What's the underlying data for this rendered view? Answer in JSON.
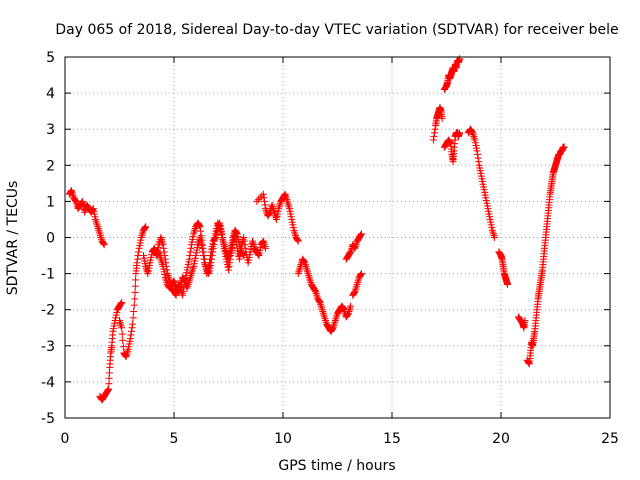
{
  "chart_data": {
    "type": "scatter",
    "title": "Day 065 of 2018, Sidereal Day-to-day VTEC variation (SDTVAR) for receiver bele",
    "xlabel": "GPS time / hours",
    "ylabel": "SDTVAR / TECUs",
    "xlim": [
      0,
      25
    ],
    "ylim": [
      -5,
      5
    ],
    "xticks": [
      "0",
      "5",
      "10",
      "15",
      "20",
      "25"
    ],
    "yticks": [
      "5",
      "4",
      "3",
      "2",
      "1",
      "0",
      "-1",
      "-2",
      "-3",
      "-4",
      "-5"
    ],
    "grid": true,
    "marker": "+",
    "color": "#ff0000",
    "series": [
      {
        "name": "SDTVAR",
        "segments": [
          {
            "x": [
              0.2,
              0.3,
              0.4,
              0.5,
              0.6,
              0.7,
              0.8,
              0.9,
              1.0,
              1.1,
              1.2,
              1.3,
              1.4,
              1.5,
              1.6,
              1.7,
              1.8
            ],
            "y": [
              1.2,
              1.3,
              1.1,
              1.0,
              0.8,
              0.9,
              1.0,
              0.7,
              0.9,
              0.8,
              0.7,
              0.8,
              0.5,
              0.3,
              0.1,
              -0.1,
              -0.2
            ]
          },
          {
            "x": [
              1.6,
              1.7,
              1.8,
              1.9,
              2.0,
              2.05,
              2.1,
              2.15,
              2.2,
              2.3,
              2.4,
              2.5,
              2.6
            ],
            "y": [
              -4.4,
              -4.5,
              -4.4,
              -4.3,
              -4.2,
              -3.6,
              -3.2,
              -3.0,
              -2.6,
              -2.3,
              -2.0,
              -1.9,
              -1.8
            ]
          },
          {
            "x": [
              2.5,
              2.6,
              2.7,
              2.8,
              2.9,
              3.0,
              3.1,
              3.2,
              3.25,
              3.3,
              3.4,
              3.5,
              3.6,
              3.7
            ],
            "y": [
              -2.3,
              -2.5,
              -3.2,
              -3.3,
              -3.1,
              -2.8,
              -2.4,
              -1.7,
              -1.0,
              -0.7,
              -0.3,
              0.0,
              0.2,
              0.3
            ]
          },
          {
            "x": [
              3.6,
              3.7,
              3.8,
              3.9,
              4.0,
              4.1,
              4.2,
              4.3,
              4.4,
              4.5,
              4.6,
              4.7,
              4.8,
              4.9,
              5.0,
              5.1,
              5.2,
              5.3,
              5.4,
              5.5,
              5.6,
              5.7,
              5.8,
              5.9,
              6.0,
              6.1,
              6.2,
              6.3,
              6.4,
              6.5,
              6.6,
              6.7,
              6.8,
              6.9,
              7.0,
              7.1,
              7.2,
              7.3,
              7.4,
              7.5,
              7.6,
              7.7,
              7.8,
              7.9,
              8.0,
              8.1,
              8.2,
              8.3,
              8.4,
              8.5,
              8.6,
              8.7,
              8.8,
              8.9,
              9.0,
              9.1,
              9.2
            ],
            "y": [
              -0.5,
              -0.8,
              -1.0,
              -0.7,
              -0.4,
              -0.3,
              -0.5,
              -0.2,
              0.0,
              -0.2,
              -0.6,
              -1.0,
              -1.2,
              -1.4,
              -1.5,
              -1.6,
              -1.3,
              -1.4,
              -1.6,
              -1.2,
              -0.9,
              -0.6,
              -0.2,
              0.1,
              0.3,
              0.4,
              0.3,
              -0.2,
              -0.6,
              -1.0,
              -0.8,
              -0.4,
              -0.1,
              0.0,
              0.2,
              0.4,
              0.1,
              -0.3,
              -0.6,
              -0.9,
              -0.5,
              -0.2,
              0.1,
              -0.3,
              -0.6,
              -0.2,
              0.0,
              -0.4,
              -0.7,
              -0.4,
              -0.1,
              -0.3,
              -0.4,
              -0.5,
              -0.2,
              -0.1,
              -0.3
            ]
          },
          {
            "x": [
              4.2,
              4.3,
              4.4,
              4.5,
              4.6,
              4.7,
              4.8,
              4.9,
              5.0,
              5.1,
              5.2,
              5.3,
              5.4,
              5.5,
              5.6,
              5.7,
              5.8,
              5.9,
              6.0,
              6.1,
              6.2,
              6.3,
              6.4,
              6.5,
              6.6,
              6.7,
              6.8,
              6.9,
              7.0,
              7.1,
              7.2,
              7.3,
              7.4,
              7.5,
              7.6,
              7.7,
              7.8,
              7.9,
              8.0,
              8.1,
              8.2
            ],
            "y": [
              -0.5,
              -0.4,
              -0.6,
              -0.8,
              -1.1,
              -1.3,
              -1.4,
              -1.3,
              -1.2,
              -1.4,
              -1.5,
              -1.3,
              -1.1,
              -1.2,
              -1.4,
              -1.2,
              -1.0,
              -0.8,
              -0.5,
              -0.2,
              0.0,
              -0.3,
              -0.7,
              -0.9,
              -1.0,
              -0.7,
              -0.3,
              0.1,
              0.4,
              0.3,
              0.0,
              -0.2,
              -0.4,
              -0.6,
              -0.3,
              0.0,
              0.2,
              0.1,
              -0.2,
              -0.4,
              -0.5
            ]
          },
          {
            "x": [
              8.8,
              9.1,
              9.2,
              9.3,
              9.4,
              9.5,
              9.6,
              9.7,
              9.8,
              9.9,
              10.0,
              10.1,
              10.2,
              10.3,
              10.4,
              10.5,
              10.6,
              10.7
            ],
            "y": [
              1.0,
              1.2,
              0.8,
              0.6,
              0.7,
              0.9,
              0.7,
              0.5,
              0.8,
              1.0,
              1.1,
              1.2,
              1.0,
              0.8,
              0.5,
              0.2,
              0.0,
              -0.1
            ]
          },
          {
            "x": [
              10.7,
              10.8,
              10.9,
              11.0,
              11.1,
              11.2,
              11.3,
              11.4,
              11.5,
              11.6,
              11.7,
              11.8,
              11.9,
              12.0,
              12.1,
              12.2,
              12.3,
              12.4,
              12.5,
              12.6,
              12.7,
              12.8,
              12.9,
              13.0,
              13.1
            ],
            "y": [
              -1.0,
              -0.8,
              -0.6,
              -0.7,
              -0.9,
              -1.1,
              -1.3,
              -1.4,
              -1.5,
              -1.7,
              -1.8,
              -2.0,
              -2.2,
              -2.4,
              -2.5,
              -2.6,
              -2.5,
              -2.3,
              -2.1,
              -2.0,
              -1.9,
              -2.0,
              -2.2,
              -2.1,
              -1.9
            ]
          },
          {
            "x": [
              12.9,
              13.0,
              13.1,
              13.2,
              13.3,
              13.4,
              13.5,
              13.6
            ],
            "y": [
              -0.6,
              -0.5,
              -0.4,
              -0.2,
              -0.3,
              -0.1,
              0.0,
              0.1
            ]
          },
          {
            "x": [
              13.2,
              13.3,
              13.4,
              13.5,
              13.6
            ],
            "y": [
              -1.6,
              -1.5,
              -1.3,
              -1.1,
              -1.0
            ]
          },
          {
            "x": [
              16.9,
              17.0,
              17.05,
              17.1,
              17.15,
              17.2,
              17.25,
              17.3
            ],
            "y": [
              2.7,
              3.1,
              3.3,
              3.4,
              3.5,
              3.6,
              3.5,
              3.3
            ]
          },
          {
            "x": [
              17.4,
              17.5,
              17.55,
              17.6,
              17.65,
              17.7,
              17.75,
              17.8,
              17.85,
              17.9,
              17.95,
              18.0,
              18.05,
              18.1
            ],
            "y": [
              4.1,
              4.2,
              4.3,
              4.5,
              4.4,
              4.5,
              4.6,
              4.7,
              4.6,
              4.8,
              4.7,
              4.9,
              4.85,
              4.95
            ]
          },
          {
            "x": [
              17.4,
              17.5,
              17.6,
              17.7,
              17.75,
              17.8,
              17.85,
              17.9,
              17.95,
              18.0,
              18.05,
              18.1
            ],
            "y": [
              2.5,
              2.6,
              2.7,
              2.6,
              2.3,
              2.1,
              2.4,
              2.8,
              2.9,
              2.9,
              2.8,
              2.9
            ]
          },
          {
            "x": [
              18.5,
              18.6,
              18.7,
              18.8,
              18.9,
              19.0,
              19.1,
              19.2,
              19.3,
              19.4,
              19.5,
              19.6,
              19.7
            ],
            "y": [
              2.9,
              3.0,
              2.9,
              2.7,
              2.4,
              2.0,
              1.7,
              1.4,
              1.1,
              0.8,
              0.5,
              0.2,
              0.0
            ]
          },
          {
            "x": [
              19.9,
              20.0,
              20.05,
              20.1,
              20.15,
              20.2,
              20.25,
              20.3
            ],
            "y": [
              -0.4,
              -0.5,
              -0.6,
              -0.8,
              -1.0,
              -1.1,
              -1.2,
              -1.3
            ]
          },
          {
            "x": [
              20.8,
              20.9,
              21.0,
              21.05,
              21.1
            ],
            "y": [
              -2.2,
              -2.3,
              -2.4,
              -2.5,
              -2.3
            ]
          },
          {
            "x": [
              21.2,
              21.3,
              21.35,
              21.4,
              21.45,
              21.5,
              21.55,
              21.6,
              21.65,
              21.7,
              21.75,
              21.8,
              21.85,
              21.9,
              21.95,
              22.0,
              22.05,
              22.1,
              22.15,
              22.2,
              22.25,
              22.3,
              22.35,
              22.4,
              22.45,
              22.5,
              22.55,
              22.6,
              22.65,
              22.7,
              22.75,
              22.8,
              22.85,
              22.9
            ],
            "y": [
              -3.4,
              -3.5,
              -3.2,
              -2.9,
              -3.0,
              -2.8,
              -2.6,
              -2.3,
              -2.0,
              -1.7,
              -1.5,
              -1.3,
              -1.1,
              -0.9,
              -0.6,
              -0.3,
              0.0,
              0.3,
              0.6,
              0.9,
              1.2,
              1.4,
              1.6,
              1.8,
              1.9,
              2.0,
              2.1,
              2.2,
              2.3,
              2.3,
              2.4,
              2.4,
              2.5,
              2.5
            ]
          }
        ]
      }
    ]
  }
}
